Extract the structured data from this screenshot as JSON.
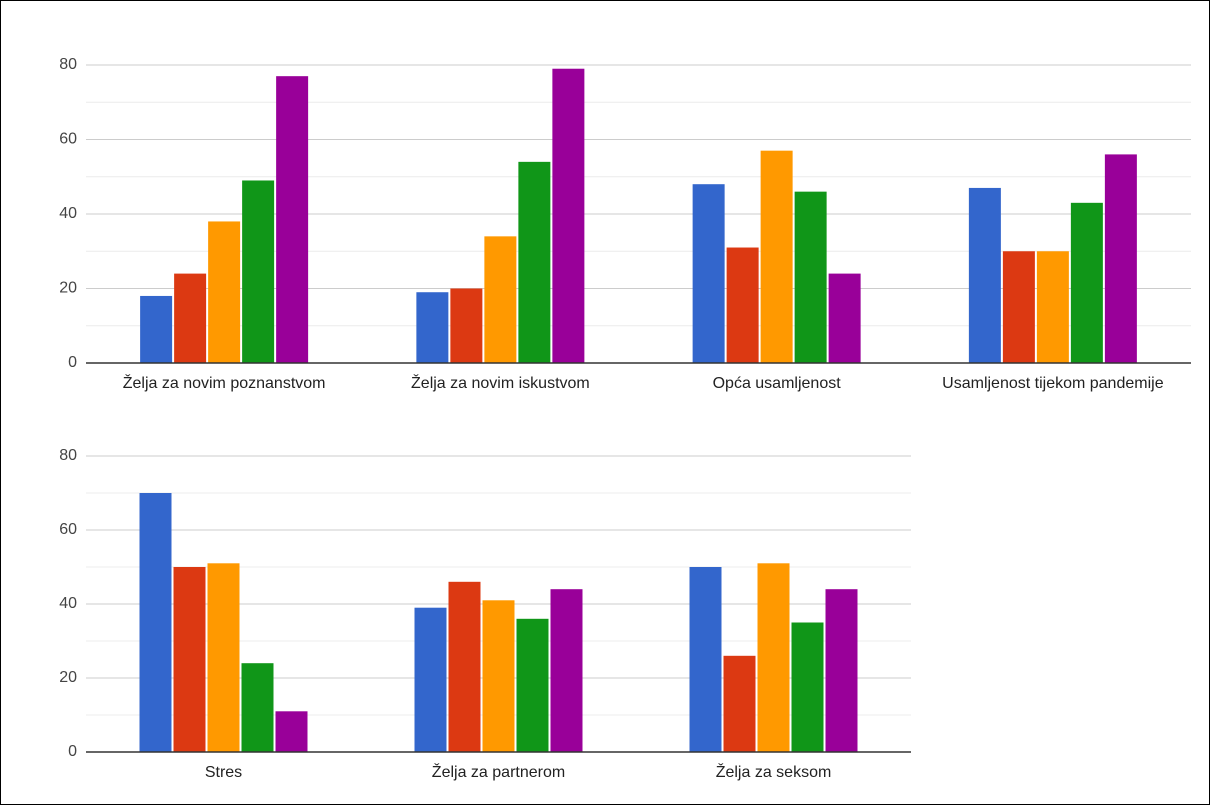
{
  "chart_data": [
    {
      "type": "bar",
      "categories": [
        "Želja za novim poznanstvom",
        "Želja za novim iskustvom",
        "Opća usamljenost",
        "Usamljenost tijekom pandemije"
      ],
      "series": [
        {
          "color": "#3366cc",
          "values": [
            18,
            19,
            48,
            47
          ]
        },
        {
          "color": "#dc3912",
          "values": [
            24,
            20,
            31,
            30
          ]
        },
        {
          "color": "#ff9900",
          "values": [
            38,
            34,
            57,
            30
          ]
        },
        {
          "color": "#109618",
          "values": [
            49,
            54,
            46,
            43
          ]
        },
        {
          "color": "#990099",
          "values": [
            77,
            79,
            24,
            56
          ]
        }
      ],
      "ylim": [
        0,
        80
      ],
      "yticks": [
        0,
        20,
        40,
        60,
        80
      ],
      "minor_yticks": [
        10,
        30,
        50,
        70
      ],
      "grid": true
    },
    {
      "type": "bar",
      "categories": [
        "Stres",
        "Želja za partnerom",
        "Želja za seksom"
      ],
      "series": [
        {
          "color": "#3366cc",
          "values": [
            70,
            39,
            50
          ]
        },
        {
          "color": "#dc3912",
          "values": [
            50,
            46,
            26
          ]
        },
        {
          "color": "#ff9900",
          "values": [
            51,
            41,
            51
          ]
        },
        {
          "color": "#109618",
          "values": [
            24,
            36,
            35
          ]
        },
        {
          "color": "#990099",
          "values": [
            11,
            44,
            44
          ]
        }
      ],
      "ylim": [
        0,
        80
      ],
      "yticks": [
        0,
        20,
        40,
        60,
        80
      ],
      "minor_yticks": [
        10,
        30,
        50,
        70
      ],
      "grid": true
    }
  ]
}
